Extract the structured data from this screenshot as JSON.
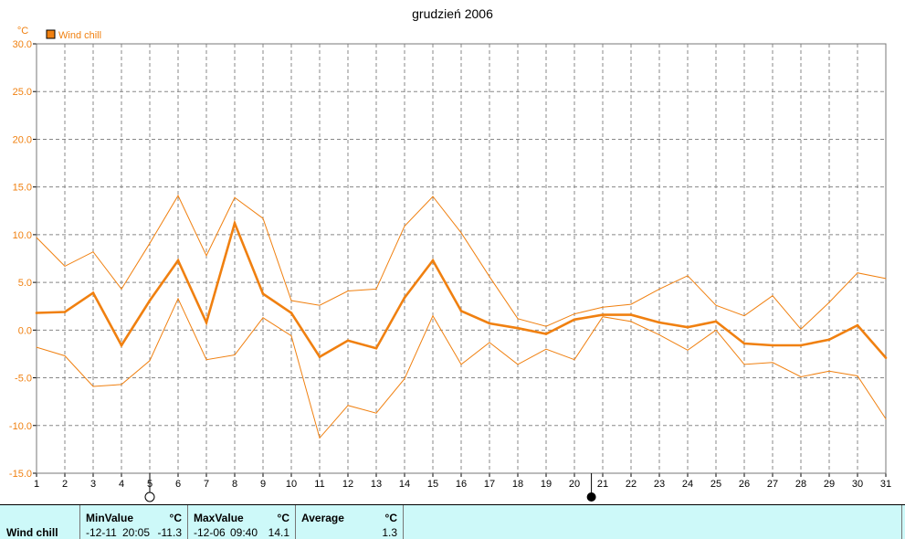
{
  "chart_data": {
    "type": "line",
    "title": "grudzień 2006",
    "yunit": "°C",
    "ylim": [
      -15,
      30
    ],
    "ytick_step": 5,
    "grid": true,
    "x": [
      1,
      2,
      3,
      4,
      5,
      6,
      7,
      8,
      9,
      10,
      11,
      12,
      13,
      14,
      15,
      16,
      17,
      18,
      19,
      20,
      21,
      22,
      23,
      24,
      25,
      26,
      27,
      28,
      29,
      30,
      31
    ],
    "legend": {
      "label": "Wind chill",
      "position": "top-left",
      "color": "#f08010"
    },
    "series": [
      {
        "name": "Wind chill",
        "role": "average",
        "color": "#f08010",
        "values": [
          1.8,
          1.9,
          3.9,
          -1.6,
          3.1,
          7.3,
          0.8,
          11.2,
          3.8,
          1.8,
          -2.8,
          -1.1,
          -1.9,
          3.4,
          7.3,
          2.0,
          0.7,
          0.2,
          -0.4,
          1.1,
          1.6,
          1.6,
          0.8,
          0.3,
          0.9,
          -1.4,
          -1.6,
          -1.6,
          -1.0,
          0.5,
          -2.9
        ]
      },
      {
        "role": "max",
        "color": "#f08010",
        "values": [
          9.7,
          6.7,
          8.2,
          4.3,
          9.1,
          14.1,
          7.8,
          13.9,
          11.7,
          3.1,
          2.6,
          4.1,
          4.3,
          10.9,
          14.0,
          10.2,
          5.6,
          1.2,
          0.4,
          1.7,
          2.4,
          2.7,
          4.3,
          5.7,
          2.6,
          1.5,
          3.6,
          0.1,
          2.9,
          6.0,
          5.4
        ]
      },
      {
        "role": "min",
        "color": "#f08010",
        "values": [
          -1.8,
          -2.7,
          -5.9,
          -5.7,
          -3.2,
          3.3,
          -3.1,
          -2.6,
          1.3,
          -0.6,
          -11.3,
          -7.9,
          -8.7,
          -5.1,
          1.5,
          -3.6,
          -1.3,
          -3.6,
          -2.0,
          -3.1,
          1.4,
          0.9,
          -0.5,
          -2.1,
          0.0,
          -3.6,
          -3.4,
          -4.9,
          -4.3,
          -4.8,
          -9.3
        ]
      }
    ],
    "moon_phases": [
      {
        "day": 5,
        "phase": "full"
      },
      {
        "day": 20.6,
        "phase": "new"
      }
    ]
  },
  "stats": {
    "row_label": "Wind chill",
    "min": {
      "header": "MinValue",
      "unit": "°C",
      "date": "-12-11",
      "time": "20:05",
      "value": "-11.3"
    },
    "max": {
      "header": "MaxValue",
      "unit": "°C",
      "date": "-12-06",
      "time": "09:40",
      "value": "14.1"
    },
    "avg": {
      "header": "Average",
      "unit": "°C",
      "value": "1.3"
    }
  }
}
